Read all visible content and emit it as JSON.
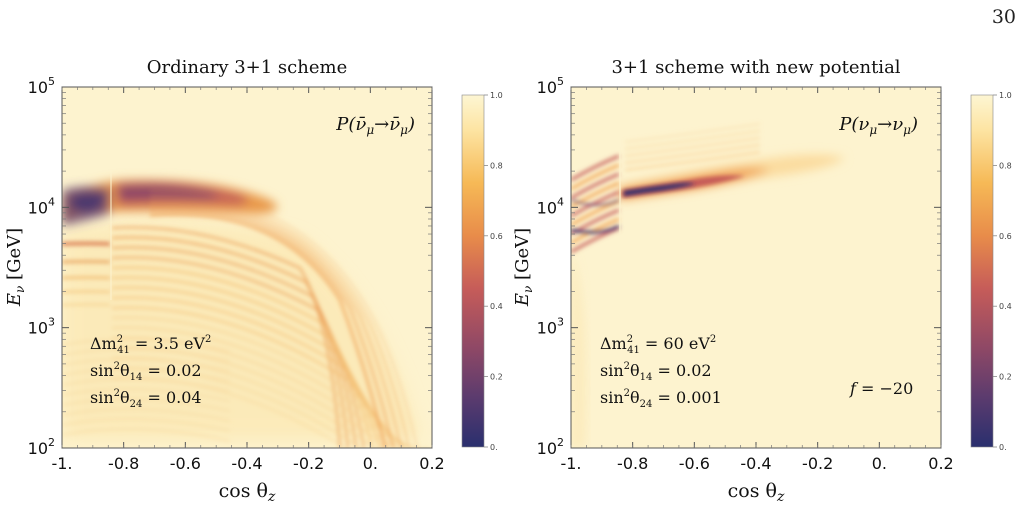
{
  "page_number": "30",
  "colors": {
    "colormap": [
      "#2a2f6e",
      "#5b3b6e",
      "#8e4866",
      "#c65c59",
      "#e88c4a",
      "#f6b956",
      "#fde4a2",
      "#fdf6d3"
    ],
    "frame": "#555555",
    "text": "#111111"
  },
  "chart_data": [
    {
      "type": "heatmap",
      "title": "Ordinary 3+1 scheme",
      "plot_label": "P(ν̄μ→ν̄μ)",
      "xlabel": "cos θz",
      "ylabel": "Eν [GeV]",
      "x_ticks": [
        "-1.",
        "-0.8",
        "-0.6",
        "-0.4",
        "-0.2",
        "0.",
        "0.2"
      ],
      "y_ticks": [
        {
          "base": "10",
          "exp": "2"
        },
        {
          "base": "10",
          "exp": "3"
        },
        {
          "base": "10",
          "exp": "4"
        },
        {
          "base": "10",
          "exp": "5"
        }
      ],
      "xlim": [
        -1,
        0.2
      ],
      "ylim": [
        100,
        100000
      ],
      "y_scale": "log",
      "colorbar_ticks": [
        "1.0",
        "0.8",
        "0.6",
        "0.4",
        "0.2",
        "0."
      ],
      "colorbar_range": [
        0,
        1
      ],
      "annotations": [
        "Δm²41 = 3.5 eV²",
        "sin²θ14 = 0.02",
        "sin²θ24 = 0.04"
      ]
    },
    {
      "type": "heatmap",
      "title": "3+1 scheme with new potential",
      "plot_label": "P(νμ→νμ)",
      "xlabel": "cos θz",
      "ylabel": "Eν [GeV]",
      "x_ticks": [
        "-1.",
        "-0.8",
        "-0.6",
        "-0.4",
        "-0.2",
        "0.",
        "0.2"
      ],
      "y_ticks": [
        {
          "base": "10",
          "exp": "2"
        },
        {
          "base": "10",
          "exp": "3"
        },
        {
          "base": "10",
          "exp": "4"
        },
        {
          "base": "10",
          "exp": "5"
        }
      ],
      "xlim": [
        -1,
        0.2
      ],
      "ylim": [
        100,
        100000
      ],
      "y_scale": "log",
      "colorbar_ticks": [
        "1.0",
        "0.8",
        "0.6",
        "0.4",
        "0.2",
        "0."
      ],
      "colorbar_range": [
        0,
        1
      ],
      "annotations": [
        "Δm²41 = 60 eV²",
        "sin²θ14 = 0.02",
        "sin²θ24 = 0.001",
        "f = −20"
      ]
    }
  ]
}
